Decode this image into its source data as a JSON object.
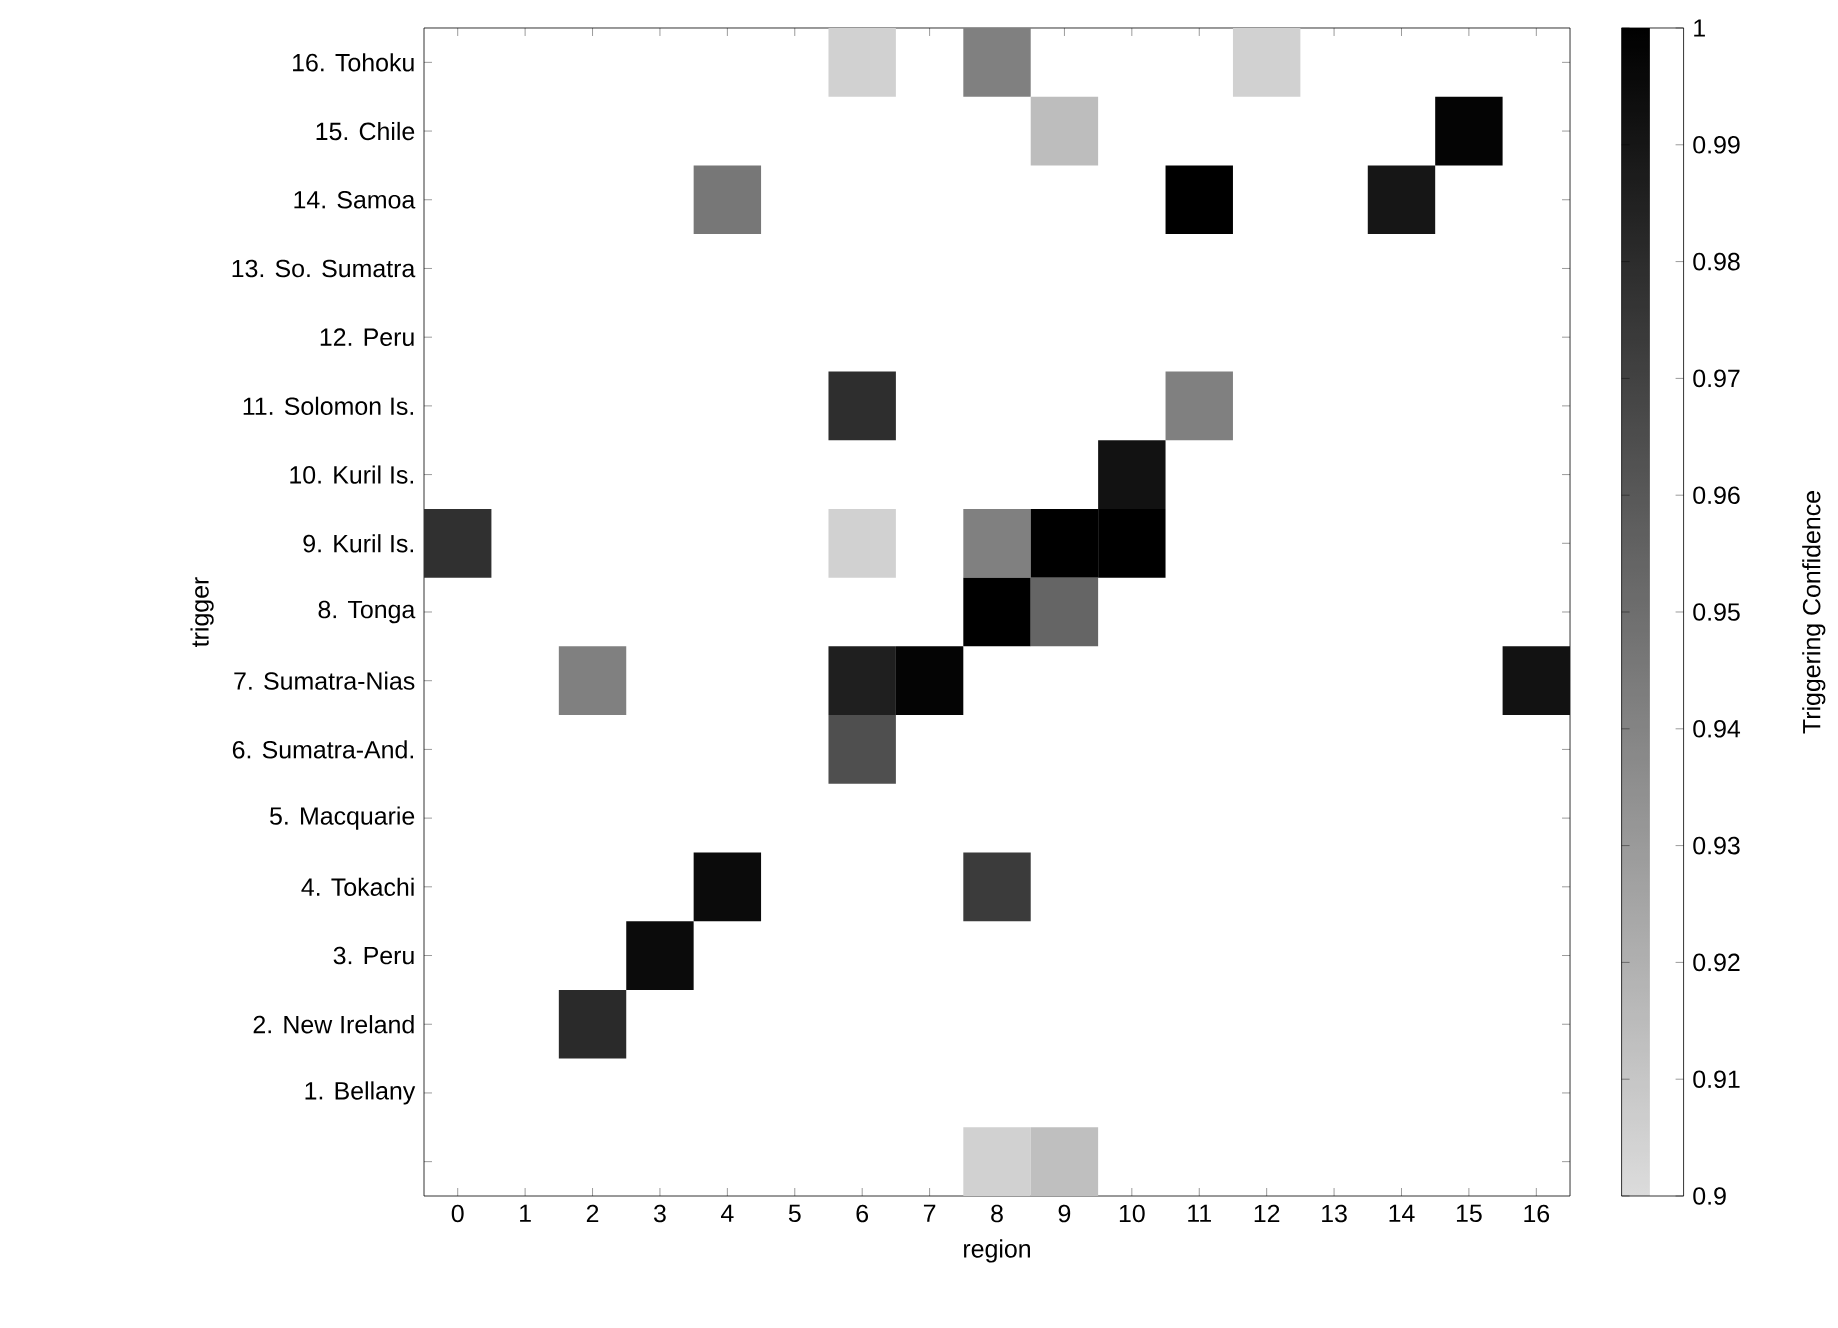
{
  "chart_data": {
    "type": "heatmap",
    "xlabel": "region",
    "ylabel": "trigger",
    "clabel": "Triggering Confidence",
    "categories": [
      "0",
      "1",
      "2",
      "3",
      "4",
      "5",
      "6",
      "7",
      "8",
      "9",
      "10",
      "11",
      "12",
      "13",
      "14",
      "15",
      "16"
    ],
    "y_categories": [
      "16. Tohoku",
      "15. Chile",
      "14. Samoa",
      "13. So. Sumatra",
      "12. Peru",
      "11. Solomon Is.",
      "10. Kuril Is.",
      "9. Kuril Is.",
      "8. Tonga",
      "7. Sumatra-Nias",
      "6. Sumatra-And.",
      "5. Macquarie",
      "4. Tokachi",
      "3. Peru",
      "2. New Ireland",
      "1. Bellany",
      null
    ],
    "cells": [
      [
        null,
        null,
        null,
        null,
        null,
        null,
        0.905,
        null,
        0.942,
        null,
        null,
        null,
        0.905,
        null,
        null,
        null,
        null
      ],
      [
        null,
        null,
        null,
        null,
        null,
        null,
        null,
        null,
        null,
        0.914,
        null,
        null,
        null,
        null,
        null,
        0.998,
        null
      ],
      [
        null,
        null,
        null,
        null,
        0.946,
        null,
        null,
        null,
        null,
        null,
        null,
        1.0,
        null,
        null,
        0.99,
        null,
        null
      ],
      [
        null,
        null,
        null,
        null,
        null,
        null,
        null,
        null,
        null,
        null,
        null,
        null,
        null,
        null,
        null,
        null,
        null
      ],
      [
        null,
        null,
        null,
        null,
        null,
        null,
        null,
        null,
        null,
        null,
        null,
        null,
        null,
        null,
        null,
        null,
        null
      ],
      [
        null,
        null,
        null,
        null,
        null,
        null,
        0.979,
        null,
        null,
        null,
        null,
        0.942,
        null,
        null,
        null,
        null,
        null
      ],
      [
        null,
        null,
        null,
        null,
        null,
        null,
        null,
        null,
        null,
        null,
        0.992,
        null,
        null,
        null,
        null,
        null,
        null
      ],
      [
        0.978,
        null,
        null,
        null,
        null,
        null,
        0.905,
        null,
        0.942,
        1.0,
        1.0,
        null,
        null,
        null,
        null,
        null,
        null
      ],
      [
        null,
        null,
        null,
        null,
        null,
        null,
        null,
        null,
        1.0,
        0.954,
        null,
        null,
        null,
        null,
        null,
        null,
        null
      ],
      [
        null,
        null,
        0.942,
        null,
        null,
        null,
        0.986,
        0.998,
        null,
        null,
        null,
        null,
        null,
        null,
        null,
        null,
        0.992
      ],
      [
        null,
        null,
        null,
        null,
        null,
        null,
        0.964,
        null,
        null,
        null,
        null,
        null,
        null,
        null,
        null,
        null,
        null
      ],
      [
        null,
        null,
        null,
        null,
        null,
        null,
        null,
        null,
        null,
        null,
        null,
        null,
        null,
        null,
        null,
        null,
        null
      ],
      [
        null,
        null,
        null,
        null,
        0.995,
        null,
        null,
        null,
        0.973,
        null,
        null,
        null,
        null,
        null,
        null,
        null,
        null
      ],
      [
        null,
        null,
        null,
        0.995,
        null,
        null,
        null,
        null,
        null,
        null,
        null,
        null,
        null,
        null,
        null,
        null,
        null
      ],
      [
        null,
        null,
        0.981,
        null,
        null,
        null,
        null,
        null,
        null,
        null,
        null,
        null,
        null,
        null,
        null,
        null,
        null
      ],
      [
        null,
        null,
        null,
        null,
        null,
        null,
        null,
        null,
        null,
        null,
        null,
        null,
        null,
        null,
        null,
        null,
        null
      ],
      [
        null,
        null,
        null,
        null,
        null,
        null,
        null,
        null,
        0.905,
        0.913,
        null,
        null,
        null,
        null,
        null,
        null,
        null
      ]
    ],
    "clim": [
      0.9,
      1
    ],
    "cticks": [
      0.9,
      0.91,
      0.92,
      0.93,
      0.94,
      0.95,
      0.96,
      0.97,
      0.98,
      0.99,
      1
    ]
  }
}
